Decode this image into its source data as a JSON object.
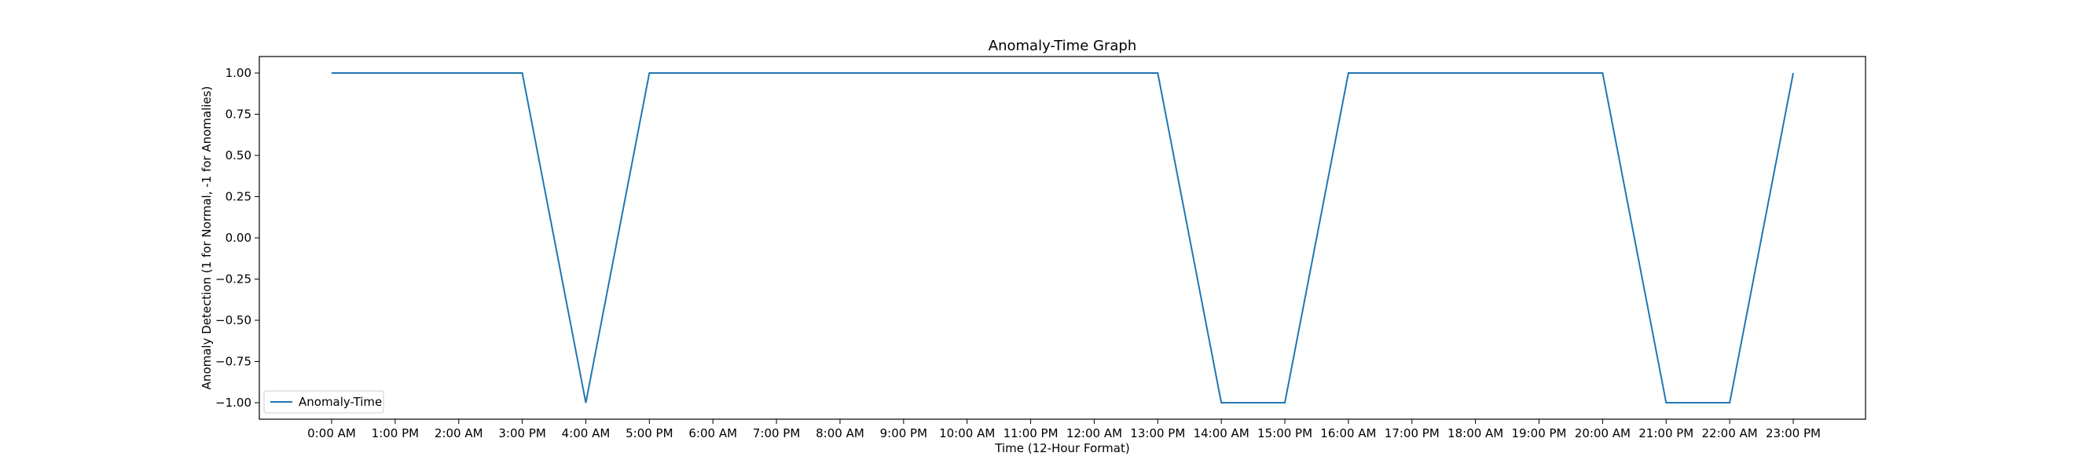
{
  "chart_data": {
    "type": "line",
    "title": "Anomaly-Time Graph",
    "xlabel": "Time (12-Hour Format)",
    "ylabel": "Anomaly Detection (1 for Normal, -1 for Anomalies)",
    "categories": [
      "0:00 AM",
      "1:00 PM",
      "2:00 AM",
      "3:00 PM",
      "4:00 AM",
      "5:00 PM",
      "6:00 AM",
      "7:00 PM",
      "8:00 AM",
      "9:00 PM",
      "10:00 AM",
      "11:00 PM",
      "12:00 AM",
      "13:00 PM",
      "14:00 AM",
      "15:00 PM",
      "16:00 AM",
      "17:00 PM",
      "18:00 AM",
      "19:00 PM",
      "20:00 AM",
      "21:00 PM",
      "22:00 AM",
      "23:00 PM"
    ],
    "series": [
      {
        "name": "Anomaly-Time",
        "color": "#1f77b4",
        "values": [
          1,
          1,
          1,
          1,
          -1,
          1,
          1,
          1,
          1,
          1,
          1,
          1,
          1,
          1,
          -1,
          -1,
          1,
          1,
          1,
          1,
          1,
          -1,
          -1,
          1
        ]
      }
    ],
    "yticks": [
      1.0,
      0.75,
      0.5,
      0.25,
      0.0,
      -0.25,
      -0.5,
      -0.75,
      -1.0
    ],
    "ytick_labels": [
      "1.00",
      "0.75",
      "0.50",
      "0.25",
      "0.00",
      "−0.25",
      "−0.50",
      "−0.75",
      "−1.00"
    ],
    "ylim": [
      -1.1,
      1.1
    ],
    "grid": false,
    "legend": {
      "placement": "lower-left",
      "label": "Anomaly-Time"
    }
  }
}
